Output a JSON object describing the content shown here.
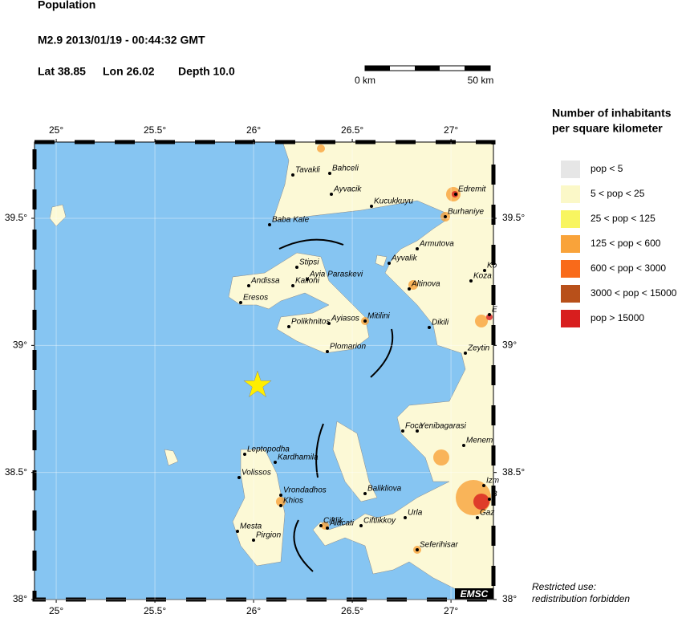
{
  "header": {
    "title": "Population",
    "event": "M2.9  2013/01/19 - 00:44:32 GMT",
    "lat": "Lat 38.85",
    "lon": "Lon  26.02",
    "depth": "Depth  10.0"
  },
  "scale": {
    "start": "0 km",
    "end": "50 km"
  },
  "map": {
    "lonlim": [
      24.89,
      27.215
    ],
    "latlim": [
      38,
      39.8
    ],
    "lonticks": [
      {
        "value": 25,
        "label": "25°"
      },
      {
        "value": 25.5,
        "label": "25.5°"
      },
      {
        "value": 26,
        "label": "26°"
      },
      {
        "value": 26.5,
        "label": "26.5°"
      },
      {
        "value": 27,
        "label": "27°"
      }
    ],
    "latticks": [
      {
        "value": 38,
        "label": "38°"
      },
      {
        "value": 38.5,
        "label": "38.5°"
      },
      {
        "value": 39,
        "label": "39°"
      },
      {
        "value": 39.5,
        "label": "39.5°"
      }
    ],
    "places": [
      "Tavakli",
      "Bahceli",
      "Ayvacik",
      "Kucukkuyu",
      "Baba Kale",
      "Edremit",
      "Burhaniye",
      "Armutova",
      "Ayvalik",
      "Altinova",
      "Ko",
      "Koza",
      "E",
      "Stipsi",
      "Andissa",
      "Kalloni",
      "Ayia Paraskevi",
      "Eresos",
      "Polikhnitos",
      "Ayiasos",
      "Mitilini",
      "Plomarion",
      "Dikili",
      "Zeytin",
      "Foca",
      "Yenibagarasi",
      "Menem",
      "Leptopodha",
      "Kardhamila",
      "Volissos",
      "Vrondadhos",
      "Khios",
      "Balikliova",
      "Urla",
      "Mesta",
      "Pirgion",
      "Ciftlik",
      "Alacati",
      "Ciftlikkoy",
      "Seferihisar",
      "Izm",
      "B",
      "Gaz"
    ],
    "watermark": "EMSC"
  },
  "legend": {
    "title": [
      "Number of inhabitants",
      "per square kilometer"
    ],
    "items": [
      {
        "label": "pop < 5",
        "color": "#e6e6e6"
      },
      {
        "label": "5 < pop < 25",
        "color": "#fbf8c8"
      },
      {
        "label": "25 < pop < 125",
        "color": "#f8f560"
      },
      {
        "label": "125 < pop < 600",
        "color": "#f9a33a"
      },
      {
        "label": "600 < pop < 3000",
        "color": "#f96a1a"
      },
      {
        "label": "3000 < pop < 15000",
        "color": "#b8501a"
      },
      {
        "label": "pop > 15000",
        "color": "#d81e1e"
      }
    ]
  },
  "notice": [
    "Restricted use:",
    "redistribution forbidden"
  ]
}
